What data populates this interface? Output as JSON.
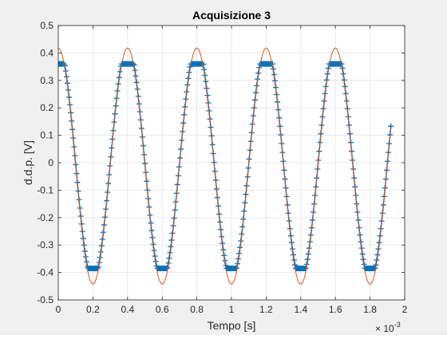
{
  "chart_data": {
    "type": "line",
    "title": "Acquisizione 3",
    "xlabel": "Tempo [s]",
    "ylabel": "d.d.p. [V]",
    "x_exponent_label": "× 10",
    "x_exponent_power": "-3",
    "xlim": [
      0,
      2
    ],
    "ylim": [
      -0.5,
      0.5
    ],
    "x_ticks": [
      0,
      0.2,
      0.4,
      0.6,
      0.8,
      1,
      1.2,
      1.4,
      1.6,
      1.8,
      2
    ],
    "x_tick_labels": [
      "0",
      "0.2",
      "0.4",
      "0.6",
      "0.8",
      "1",
      "1.2",
      "1.4",
      "1.6",
      "1.8",
      "2"
    ],
    "y_ticks": [
      -0.5,
      -0.4,
      -0.3,
      -0.2,
      -0.1,
      0,
      0.1,
      0.2,
      0.3,
      0.4,
      0.5
    ],
    "y_tick_labels": [
      "-0.5",
      "-0.4",
      "-0.3",
      "-0.2",
      "-0.1",
      "0",
      "0.1",
      "0.2",
      "0.3",
      "0.4",
      "0.5"
    ],
    "grid": true,
    "x_unit_scale": 0.001,
    "series": [
      {
        "role": "measured",
        "marker": "+",
        "color": "#0072bd",
        "description_shape": "clipped sinusoid",
        "amplitude": 0.43,
        "frequency_hz": 2500,
        "phase_deg": 90,
        "clip_high": 0.36,
        "clip_low": -0.385,
        "x_range": [
          0,
          1.92
        ],
        "samples": 400
      },
      {
        "role": "fit",
        "color": "#d95319",
        "description_shape": "sinusoid",
        "amplitude": 0.43,
        "frequency_hz": 2500,
        "phase_deg": 90,
        "offset": -0.012,
        "x_range": [
          0,
          1.92
        ]
      }
    ]
  }
}
